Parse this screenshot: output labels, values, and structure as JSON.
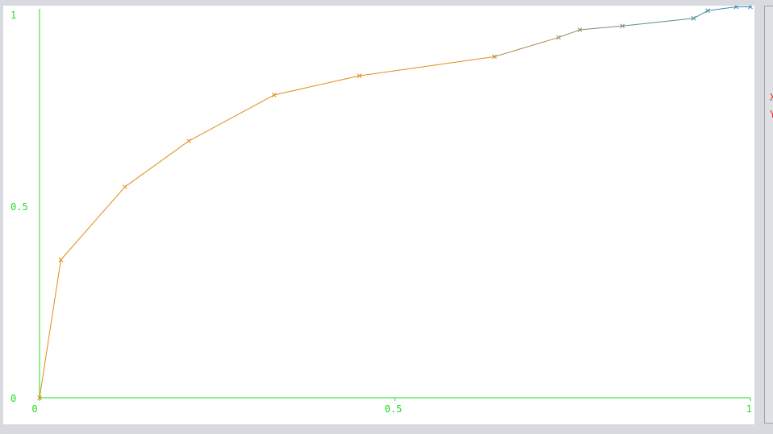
{
  "colors": {
    "axis": "#22dd22",
    "series_start": "#e08c18",
    "series_end": "#2a8bb8",
    "side_text": "#e03030"
  },
  "side_panel": {
    "mark_x": "X",
    "mark_y": "Y"
  },
  "chart_data": {
    "type": "line",
    "title": "",
    "xlabel": "",
    "ylabel": "",
    "xlim": [
      0,
      1
    ],
    "ylim": [
      0,
      1
    ],
    "grid": false,
    "legend": "none",
    "marker": "x",
    "x_ticks": [
      "0",
      "0.5",
      "1"
    ],
    "y_ticks": [
      "0",
      "0.5",
      "1"
    ],
    "series": [
      {
        "x": [
          0.0,
          0.03,
          0.12,
          0.21,
          0.33,
          0.45,
          0.64,
          0.73,
          0.76,
          0.82,
          0.92,
          0.94,
          0.98,
          1.0
        ],
        "y": [
          0.0,
          0.36,
          0.55,
          0.67,
          0.79,
          0.84,
          0.89,
          0.94,
          0.96,
          0.97,
          0.99,
          1.01,
          1.02,
          1.02
        ]
      }
    ]
  }
}
